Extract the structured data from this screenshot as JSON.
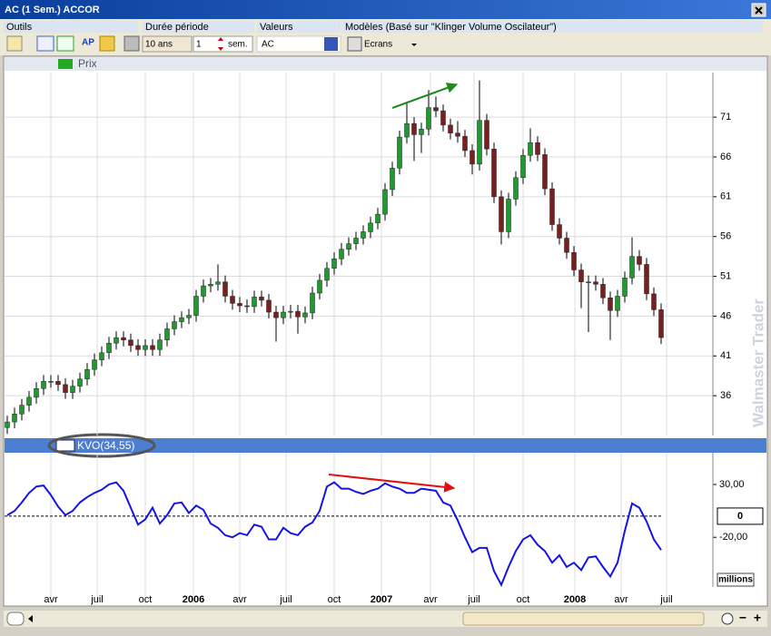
{
  "window": {
    "title": "AC (1 Sem.) ACCOR",
    "toolbar": {
      "tools_label": "Outils",
      "period_label": "Durée période",
      "values_label": "Valeurs",
      "models_label": "Modèles (Basé sur \"Klinger Volume Oscilateur\")",
      "ap_icon": "AP",
      "period_value": "10 ans",
      "step_value": "1",
      "step_unit": "sem.",
      "symbol": "AC",
      "screens": "Ecrans"
    },
    "watermark": "Walmaster Trader"
  },
  "chart_data": [
    {
      "type": "candlestick",
      "title": "Prix",
      "up_color": "#1f9a2f",
      "down_color": "#7a1f1f",
      "grid": true,
      "xlim": [
        -0.75,
        194.25
      ],
      "ylim": [
        31,
        76.6
      ],
      "yticks": [
        36,
        41,
        46,
        51,
        56,
        61,
        66,
        71
      ],
      "x": [
        0,
        2,
        4,
        6,
        8,
        10,
        12,
        14,
        16,
        18,
        20,
        22,
        24,
        26,
        28,
        30,
        32,
        34,
        36,
        38,
        40,
        42,
        44,
        46,
        48,
        50,
        52,
        54,
        56,
        58,
        60,
        62,
        64,
        66,
        68,
        70,
        72,
        74,
        76,
        78,
        80,
        82,
        84,
        86,
        88,
        90,
        92,
        94,
        96,
        98,
        100,
        102,
        104,
        106,
        108,
        110,
        112,
        114,
        116,
        118,
        120,
        122,
        124,
        126,
        128,
        130,
        132,
        134,
        136,
        138,
        140,
        142,
        144,
        146,
        148,
        150,
        152,
        154,
        156,
        158,
        160,
        162,
        164,
        166,
        168,
        170,
        172,
        174,
        176,
        178,
        180
      ],
      "open": [
        32.0,
        32.7,
        33.7,
        34.8,
        35.8,
        36.9,
        37.8,
        37.8,
        37.4,
        36.4,
        37.2,
        38.1,
        39.3,
        40.5,
        41.4,
        42.6,
        43.3,
        43.0,
        42.3,
        41.8,
        42.3,
        41.8,
        43.0,
        44.4,
        45.3,
        45.8,
        46.1,
        48.5,
        49.8,
        50.0,
        50.3,
        48.5,
        47.6,
        47.3,
        47.2,
        48.4,
        48.0,
        46.5,
        45.8,
        46.5,
        46.6,
        45.9,
        46.4,
        48.9,
        50.5,
        52.0,
        53.2,
        54.4,
        55.1,
        55.8,
        56.6,
        57.7,
        58.8,
        61.9,
        64.6,
        68.5,
        70.2,
        68.8,
        69.5,
        72.2,
        71.8,
        70.0,
        69.0,
        68.6,
        66.8,
        65.1,
        70.6,
        67.0,
        61.0,
        56.6,
        60.7,
        63.4,
        66.2,
        67.8,
        66.3,
        62.0,
        57.5,
        55.8,
        54.0,
        51.8,
        50.3,
        50.3,
        50.0,
        48.3,
        46.7,
        48.5,
        50.8,
        53.5,
        52.5,
        48.8,
        46.8
      ],
      "high": [
        33.5,
        34.5,
        35.6,
        36.6,
        37.7,
        38.6,
        38.6,
        38.6,
        38.2,
        38.0,
        38.9,
        40.1,
        41.3,
        42.2,
        43.4,
        44.1,
        44.1,
        43.8,
        43.1,
        43.1,
        43.1,
        43.8,
        45.2,
        46.1,
        46.6,
        46.9,
        49.3,
        50.6,
        50.8,
        52.5,
        51.1,
        49.3,
        48.4,
        48.1,
        49.2,
        49.2,
        48.8,
        47.3,
        47.3,
        47.4,
        47.4,
        47.2,
        49.7,
        51.3,
        52.8,
        54.0,
        55.2,
        55.9,
        56.6,
        57.4,
        58.5,
        59.6,
        62.7,
        65.4,
        69.3,
        72.8,
        71.0,
        70.3,
        74.4,
        73.6,
        72.6,
        70.8,
        70.5,
        69.4,
        67.6,
        75.6,
        71.4,
        67.8,
        61.8,
        61.5,
        64.2,
        67.0,
        69.6,
        68.6,
        67.1,
        62.8,
        58.3,
        56.6,
        54.8,
        52.6,
        51.1,
        51.1,
        50.8,
        49.1,
        49.3,
        51.6,
        55.9,
        54.3,
        53.3,
        49.6,
        47.6
      ],
      "low": [
        31.2,
        31.9,
        32.9,
        34.0,
        35.0,
        36.1,
        37.0,
        36.6,
        35.6,
        35.6,
        36.4,
        37.3,
        38.5,
        39.7,
        40.6,
        41.8,
        42.2,
        41.5,
        41.0,
        41.0,
        41.0,
        41.0,
        42.2,
        43.6,
        44.5,
        45.0,
        45.3,
        47.7,
        49.0,
        49.2,
        47.7,
        46.8,
        46.5,
        46.4,
        46.4,
        47.2,
        45.7,
        42.8,
        45.0,
        45.7,
        43.8,
        45.1,
        45.6,
        48.1,
        49.7,
        51.2,
        52.4,
        53.6,
        54.3,
        55.0,
        55.8,
        56.9,
        58.0,
        61.1,
        63.8,
        67.7,
        65.5,
        66.5,
        68.7,
        71.0,
        69.2,
        68.2,
        67.8,
        66.0,
        63.8,
        64.3,
        66.2,
        60.2,
        55.0,
        55.8,
        59.9,
        62.6,
        65.4,
        65.5,
        61.2,
        56.7,
        55.0,
        53.2,
        51.0,
        47.0,
        44.0,
        49.2,
        47.5,
        43.0,
        45.9,
        47.7,
        50.0,
        51.7,
        48.0,
        46.0,
        42.5
      ],
      "close": [
        32.7,
        33.7,
        34.8,
        35.8,
        36.9,
        37.8,
        37.8,
        37.4,
        36.4,
        37.2,
        38.1,
        39.3,
        40.5,
        41.4,
        42.6,
        43.3,
        43.0,
        42.3,
        41.8,
        42.3,
        41.8,
        43.0,
        44.4,
        45.3,
        45.8,
        46.1,
        48.5,
        49.8,
        50.0,
        50.3,
        48.5,
        47.6,
        47.3,
        47.2,
        48.4,
        48.0,
        46.5,
        45.8,
        46.5,
        46.6,
        45.9,
        46.4,
        48.9,
        50.5,
        52.0,
        53.2,
        54.4,
        55.1,
        55.8,
        56.6,
        57.7,
        58.8,
        61.9,
        64.6,
        68.5,
        70.2,
        68.8,
        69.5,
        72.2,
        71.8,
        70.0,
        69.0,
        68.6,
        66.8,
        65.1,
        70.6,
        67.0,
        61.0,
        56.6,
        60.7,
        63.4,
        66.2,
        67.8,
        66.3,
        62.0,
        57.5,
        55.8,
        54.0,
        51.8,
        50.3,
        50.3,
        50.0,
        48.3,
        46.7,
        48.5,
        50.8,
        53.5,
        52.5,
        48.8,
        46.8,
        43.3
      ]
    },
    {
      "type": "line",
      "y_unit": "millions",
      "xlim": [
        -0.75,
        194.25
      ],
      "ylim": [
        -67,
        60
      ],
      "yticks": [
        {
          "value": 30,
          "label": "30,00"
        },
        0,
        {
          "value": -20,
          "label": "-20,00"
        }
      ],
      "xticks": [
        {
          "value": 12,
          "label": "avr"
        },
        {
          "value": 24.75,
          "label": "juil"
        },
        {
          "value": 38,
          "label": "oct"
        },
        {
          "value": 51.25,
          "label": "2006"
        },
        {
          "value": 64,
          "label": "avr"
        },
        {
          "value": 76.75,
          "label": "juil"
        },
        {
          "value": 90,
          "label": "oct"
        },
        {
          "value": 103,
          "label": "2007"
        },
        {
          "value": 116.5,
          "label": "avr"
        },
        {
          "value": 128.5,
          "label": "juil"
        },
        {
          "value": 142,
          "label": "oct"
        },
        {
          "value": 156.25,
          "label": "2008"
        },
        {
          "value": 169,
          "label": "avr"
        },
        {
          "value": 181.5,
          "label": "juil"
        }
      ],
      "x": [
        0,
        2,
        4,
        6,
        8,
        10,
        12,
        14,
        16,
        18,
        20,
        22,
        24,
        26,
        28,
        30,
        32,
        34,
        36,
        38,
        40,
        42,
        44,
        46,
        48,
        50,
        52,
        54,
        56,
        58,
        60,
        62,
        64,
        66,
        68,
        70,
        72,
        74,
        76,
        78,
        80,
        82,
        84,
        86,
        88,
        90,
        92,
        94,
        96,
        98,
        100,
        102,
        104,
        106,
        108,
        110,
        112,
        114,
        116,
        118,
        120,
        122,
        124,
        126,
        128,
        130,
        132,
        134,
        136,
        138,
        140,
        142,
        144,
        146,
        148,
        150,
        152,
        154,
        156,
        158,
        160,
        162,
        164,
        166,
        168,
        170,
        172,
        174,
        176,
        178,
        180
      ],
      "series": [
        {
          "name": "KVO(34,55)",
          "color": "#1414e6",
          "values": [
            0.9,
            5,
            13,
            22,
            28,
            29,
            20,
            9,
            1,
            5,
            13,
            18,
            22,
            25,
            30,
            32,
            24,
            8,
            -8,
            -3,
            8,
            -7,
            1,
            12,
            13,
            3,
            10,
            6,
            -7,
            -11,
            -18,
            -20,
            -16,
            -18,
            -8,
            -10,
            -22,
            -22,
            -11,
            -16,
            -18,
            -10,
            -6,
            5,
            28,
            32,
            26,
            26,
            23,
            21,
            24,
            26,
            31,
            28,
            26,
            22,
            22,
            26,
            25,
            24,
            13,
            10,
            -4,
            -20,
            -34,
            -30,
            -30,
            -52,
            -65,
            -48,
            -33,
            -22,
            -18,
            -27,
            -33,
            -44,
            -37,
            -48,
            -44,
            -51,
            -39,
            -38,
            -48,
            -57,
            -44,
            -14,
            12,
            8,
            -5,
            -22,
            -32
          ]
        }
      ]
    }
  ]
}
